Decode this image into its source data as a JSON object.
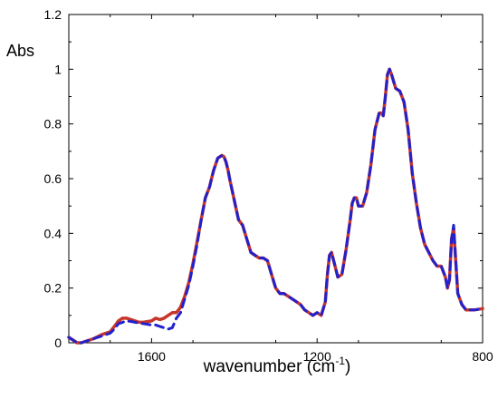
{
  "chart_data": {
    "type": "line",
    "title": "",
    "xlabel": "wavenumber (cm",
    "xlabel_sup": "-1",
    "xlabel_end": ")",
    "ylabel": "Abs",
    "xlim": [
      1800,
      800
    ],
    "ylim": [
      0,
      1.2
    ],
    "x_ticks": [
      1600,
      1200,
      800
    ],
    "y_ticks": [
      0,
      0.2,
      0.4,
      0.6,
      0.8,
      1,
      1.2
    ],
    "x_tick_labels": [
      "1600",
      "1200",
      "800"
    ],
    "y_tick_labels": [
      "0",
      "0.2",
      "0.4",
      "0.6",
      "0.8",
      "1",
      "1.2"
    ],
    "grid": false,
    "legend": "none",
    "series": [
      {
        "color": "#c8352a",
        "style": "solid",
        "x": [
          1800,
          1790,
          1780,
          1770,
          1760,
          1740,
          1720,
          1700,
          1690,
          1680,
          1670,
          1660,
          1650,
          1640,
          1630,
          1620,
          1600,
          1590,
          1580,
          1570,
          1560,
          1550,
          1540,
          1530,
          1520,
          1510,
          1500,
          1490,
          1480,
          1470,
          1460,
          1450,
          1440,
          1430,
          1425,
          1420,
          1415,
          1410,
          1400,
          1390,
          1380,
          1370,
          1360,
          1350,
          1340,
          1330,
          1325,
          1320,
          1310,
          1300,
          1290,
          1280,
          1270,
          1260,
          1250,
          1240,
          1230,
          1220,
          1210,
          1200,
          1190,
          1180,
          1175,
          1170,
          1165,
          1160,
          1150,
          1140,
          1130,
          1120,
          1115,
          1110,
          1105,
          1100,
          1090,
          1080,
          1070,
          1060,
          1050,
          1045,
          1040,
          1035,
          1030,
          1025,
          1020,
          1010,
          1000,
          990,
          980,
          970,
          960,
          950,
          940,
          930,
          920,
          910,
          900,
          890,
          885,
          880,
          875,
          870,
          865,
          860,
          850,
          840,
          830,
          820,
          800
        ],
        "y": [
          0.02,
          0.01,
          0.0,
          0.0,
          0.005,
          0.015,
          0.03,
          0.04,
          0.06,
          0.08,
          0.09,
          0.09,
          0.085,
          0.08,
          0.075,
          0.075,
          0.08,
          0.09,
          0.085,
          0.09,
          0.1,
          0.11,
          0.11,
          0.13,
          0.17,
          0.22,
          0.29,
          0.37,
          0.45,
          0.53,
          0.57,
          0.63,
          0.675,
          0.685,
          0.68,
          0.66,
          0.63,
          0.59,
          0.52,
          0.45,
          0.43,
          0.38,
          0.33,
          0.32,
          0.31,
          0.31,
          0.305,
          0.3,
          0.25,
          0.2,
          0.18,
          0.18,
          0.17,
          0.16,
          0.15,
          0.14,
          0.12,
          0.11,
          0.1,
          0.11,
          0.1,
          0.15,
          0.25,
          0.32,
          0.33,
          0.3,
          0.24,
          0.25,
          0.34,
          0.45,
          0.51,
          0.53,
          0.53,
          0.5,
          0.5,
          0.55,
          0.65,
          0.78,
          0.84,
          0.84,
          0.83,
          0.9,
          0.98,
          1.0,
          0.98,
          0.93,
          0.92,
          0.88,
          0.78,
          0.62,
          0.51,
          0.42,
          0.36,
          0.33,
          0.3,
          0.28,
          0.28,
          0.24,
          0.2,
          0.23,
          0.38,
          0.42,
          0.3,
          0.18,
          0.14,
          0.12,
          0.12,
          0.12,
          0.125
        ]
      },
      {
        "color": "#2222cc",
        "style": "dashed",
        "x": [
          1800,
          1790,
          1780,
          1770,
          1760,
          1740,
          1720,
          1700,
          1690,
          1680,
          1670,
          1660,
          1650,
          1640,
          1630,
          1620,
          1600,
          1590,
          1580,
          1570,
          1560,
          1550,
          1540,
          1530,
          1520,
          1510,
          1500,
          1490,
          1480,
          1470,
          1460,
          1450,
          1440,
          1430,
          1425,
          1420,
          1415,
          1410,
          1400,
          1390,
          1380,
          1370,
          1360,
          1350,
          1340,
          1330,
          1325,
          1320,
          1310,
          1300,
          1290,
          1280,
          1270,
          1260,
          1250,
          1240,
          1230,
          1220,
          1210,
          1200,
          1190,
          1180,
          1175,
          1170,
          1165,
          1160,
          1150,
          1140,
          1130,
          1120,
          1115,
          1110,
          1105,
          1100,
          1090,
          1080,
          1070,
          1060,
          1050,
          1045,
          1040,
          1035,
          1030,
          1025,
          1020,
          1010,
          1000,
          990,
          980,
          970,
          960,
          950,
          940,
          930,
          920,
          910,
          900,
          890,
          885,
          880,
          875,
          870,
          865,
          860,
          850,
          840,
          830,
          820,
          800
        ],
        "y": [
          0.02,
          0.01,
          0.0,
          0.0,
          0.005,
          0.015,
          0.025,
          0.035,
          0.05,
          0.07,
          0.075,
          0.08,
          0.078,
          0.075,
          0.072,
          0.07,
          0.065,
          0.065,
          0.06,
          0.055,
          0.05,
          0.055,
          0.09,
          0.11,
          0.16,
          0.21,
          0.28,
          0.36,
          0.45,
          0.53,
          0.57,
          0.63,
          0.675,
          0.685,
          0.68,
          0.66,
          0.63,
          0.59,
          0.52,
          0.45,
          0.43,
          0.38,
          0.33,
          0.32,
          0.31,
          0.31,
          0.305,
          0.3,
          0.25,
          0.2,
          0.18,
          0.18,
          0.17,
          0.16,
          0.15,
          0.14,
          0.12,
          0.11,
          0.1,
          0.11,
          0.1,
          0.15,
          0.25,
          0.32,
          0.33,
          0.3,
          0.24,
          0.25,
          0.34,
          0.45,
          0.51,
          0.53,
          0.53,
          0.5,
          0.5,
          0.55,
          0.65,
          0.78,
          0.84,
          0.84,
          0.83,
          0.9,
          0.98,
          1.0,
          0.98,
          0.93,
          0.92,
          0.88,
          0.78,
          0.62,
          0.51,
          0.42,
          0.36,
          0.33,
          0.3,
          0.28,
          0.28,
          0.24,
          0.2,
          0.23,
          0.38,
          0.43,
          0.3,
          0.18,
          0.14,
          0.12,
          0.12,
          0.12,
          0.125
        ]
      }
    ]
  }
}
